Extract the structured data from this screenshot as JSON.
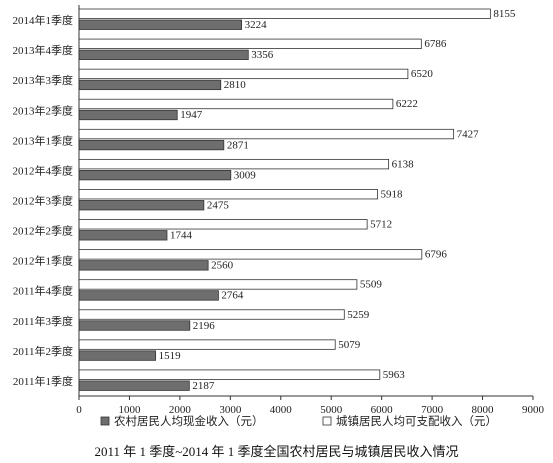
{
  "chart_data": {
    "type": "bar",
    "orientation": "horizontal",
    "title": "2011 年 1 季度~2014 年 1 季度全国农村居民与城镇居民收入情况",
    "categories": [
      "2014年1季度",
      "2013年4季度",
      "2013年3季度",
      "2013年2季度",
      "2013年1季度",
      "2012年4季度",
      "2012年3季度",
      "2012年2季度",
      "2012年1季度",
      "2011年4季度",
      "2011年3季度",
      "2011年2季度",
      "2011年1季度"
    ],
    "series": [
      {
        "name": "农村居民人均现金收入（元）",
        "color": "#6e6e6e",
        "values": [
          3224,
          3356,
          2810,
          1947,
          2871,
          3009,
          2475,
          1744,
          2560,
          2764,
          2196,
          1519,
          2187
        ]
      },
      {
        "name": "城镇居民人均可支配收入（元）",
        "color": "#ffffff",
        "values": [
          8155,
          6786,
          6520,
          6222,
          7427,
          6138,
          5918,
          5712,
          6796,
          5509,
          5259,
          5079,
          5963
        ]
      }
    ],
    "xlim": [
      0,
      9000
    ],
    "xticks": [
      "0",
      "1000",
      "2000",
      "3000",
      "4000",
      "5000",
      "6000",
      "7000",
      "8000",
      "9000"
    ],
    "legend_position": "bottom",
    "grid": false
  }
}
